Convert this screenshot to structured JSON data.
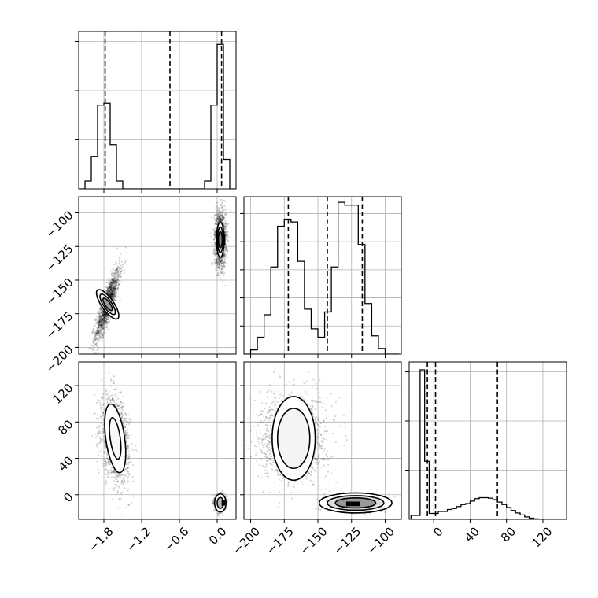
{
  "chart_data": {
    "type": "corner",
    "params": [
      {
        "range": [
          -2.2,
          0.3
        ],
        "ticks": [
          -1.8,
          -1.2,
          -0.6,
          0.0
        ],
        "tick_labels": [
          "−1.8",
          "−1.2",
          "−0.6",
          "0.0"
        ]
      },
      {
        "range": [
          -205,
          -88
        ],
        "ticks": [
          -200,
          -175,
          -150,
          -125,
          -100
        ],
        "tick_labels": [
          "−200",
          "−175",
          "−150",
          "−125",
          "−100"
        ]
      },
      {
        "range": [
          -27,
          146
        ],
        "ticks": [
          0,
          40,
          80,
          120
        ],
        "tick_labels": [
          "0",
          "40",
          "80",
          "120"
        ]
      }
    ],
    "marginals": [
      {
        "param": 0,
        "edges": [
          -2.2,
          -2.1,
          -2.0,
          -1.9,
          -1.8,
          -1.7,
          -1.6,
          -1.5,
          -1.4,
          -1.3,
          -1.2,
          -1.1,
          -1.0,
          -0.9,
          -0.8,
          -0.7,
          -0.6,
          -0.5,
          -0.4,
          -0.3,
          -0.2,
          -0.1,
          0.0,
          0.1,
          0.2,
          0.3
        ],
        "counts": [
          0,
          80,
          330,
          850,
          870,
          450,
          80,
          0,
          0,
          0,
          0,
          0,
          0,
          0,
          0,
          0,
          0,
          0,
          0,
          0,
          80,
          850,
          1470,
          300,
          0
        ],
        "ymax": 1600,
        "yticks": [
          500,
          1000,
          1500
        ],
        "quantiles": [
          -1.78,
          -0.75,
          0.07
        ]
      },
      {
        "param": 1,
        "edges": [
          -205,
          -200,
          -195,
          -190,
          -185,
          -180,
          -175,
          -170,
          -165,
          -160,
          -155,
          -150,
          -145,
          -140,
          -135,
          -130,
          -125,
          -120,
          -115,
          -110,
          -105,
          -100,
          -95,
          -90
        ],
        "counts": [
          0,
          15,
          60,
          140,
          310,
          455,
          480,
          470,
          330,
          160,
          90,
          60,
          150,
          310,
          540,
          530,
          530,
          390,
          180,
          65,
          20,
          0,
          0
        ],
        "ymax": 560,
        "yticks": [
          100,
          200,
          300,
          400,
          500
        ],
        "quantiles": [
          -172,
          -143,
          -117
        ]
      },
      {
        "param": 2,
        "edges": [
          -25,
          -15,
          -10,
          -5,
          0,
          5,
          10,
          15,
          20,
          25,
          30,
          35,
          40,
          45,
          50,
          55,
          60,
          65,
          70,
          75,
          80,
          85,
          90,
          95,
          100,
          105,
          110,
          115,
          120,
          125,
          130
        ],
        "counts": [
          40,
          1520,
          590,
          60,
          60,
          80,
          80,
          100,
          110,
          130,
          150,
          160,
          185,
          210,
          220,
          220,
          215,
          200,
          175,
          150,
          120,
          90,
          65,
          45,
          25,
          12,
          5,
          2,
          0,
          0
        ],
        "ymax": 1600,
        "yticks": [
          500,
          1000,
          1500
        ],
        "quantiles": [
          -7,
          2,
          70
        ]
      }
    ],
    "joint": [
      {
        "x_param": 0,
        "y_param": 1,
        "clusters": [
          {
            "cx": -1.74,
            "cy": -168,
            "sx": 0.095,
            "sy": 13,
            "rho": 0.85,
            "n": 1500,
            "contours": [
              {
                "a": 0.095,
                "b": 13,
                "fill": "#ffffff"
              },
              {
                "a": 0.065,
                "b": 9,
                "fill": "#eeeeee"
              },
              {
                "a": 0.04,
                "b": 5.5,
                "fill": "#999999"
              }
            ]
          },
          {
            "cx": 0.05,
            "cy": -120,
            "sx": 0.045,
            "sy": 10,
            "rho": 0.0,
            "n": 1500,
            "contours": [
              {
                "a": 0.06,
                "b": 13,
                "fill": "#ffffff"
              },
              {
                "a": 0.045,
                "b": 9.5,
                "fill": "#dddddd"
              },
              {
                "a": 0.03,
                "b": 6,
                "fill": "#888888"
              }
            ],
            "peak": {
              "x": 0.1,
              "y": -120,
              "w": 0.06,
              "h": 8
            }
          }
        ]
      },
      {
        "x_param": 0,
        "y_param": 2,
        "clusters": [
          {
            "cx": -1.62,
            "cy": 62,
            "sx": 0.11,
            "sy": 23,
            "rho": -0.3,
            "n": 1500,
            "contours": [
              {
                "a": 0.15,
                "b": 38,
                "fill": "#ffffff"
              },
              {
                "a": 0.08,
                "b": 23,
                "fill": "#f8f8f8"
              }
            ]
          },
          {
            "cx": 0.05,
            "cy": -9,
            "sx": 0.04,
            "sy": 4,
            "rho": 0.0,
            "n": 1200,
            "contours": [
              {
                "a": 0.09,
                "b": 10,
                "fill": "#ffffff"
              },
              {
                "a": 0.05,
                "b": 6,
                "fill": "#bbbbbb"
              }
            ],
            "peak": {
              "x": 0.1,
              "y": -9,
              "w": 0.06,
              "h": 6
            }
          }
        ]
      },
      {
        "x_param": 1,
        "y_param": 2,
        "clusters": [
          {
            "cx": -168,
            "cy": 62,
            "sx": 12,
            "sy": 23,
            "rho": 0.0,
            "n": 1600,
            "contours": [
              {
                "a": 16,
                "b": 46,
                "fill": "#ffffff"
              },
              {
                "a": 12,
                "b": 33,
                "fill": "#f4f4f4"
              }
            ]
          },
          {
            "cx": -122,
            "cy": -9,
            "sx": 9,
            "sy": 4,
            "rho": 0.0,
            "n": 1400,
            "contours": [
              {
                "a": 27,
                "b": 11,
                "fill": "#ffffff"
              },
              {
                "a": 21,
                "b": 8,
                "fill": "#dddddd"
              },
              {
                "a": 15,
                "b": 5.5,
                "fill": "#999999"
              }
            ],
            "peak": {
              "x": -124,
              "y": -10,
              "w": 10,
              "h": 5
            }
          }
        ]
      }
    ]
  }
}
